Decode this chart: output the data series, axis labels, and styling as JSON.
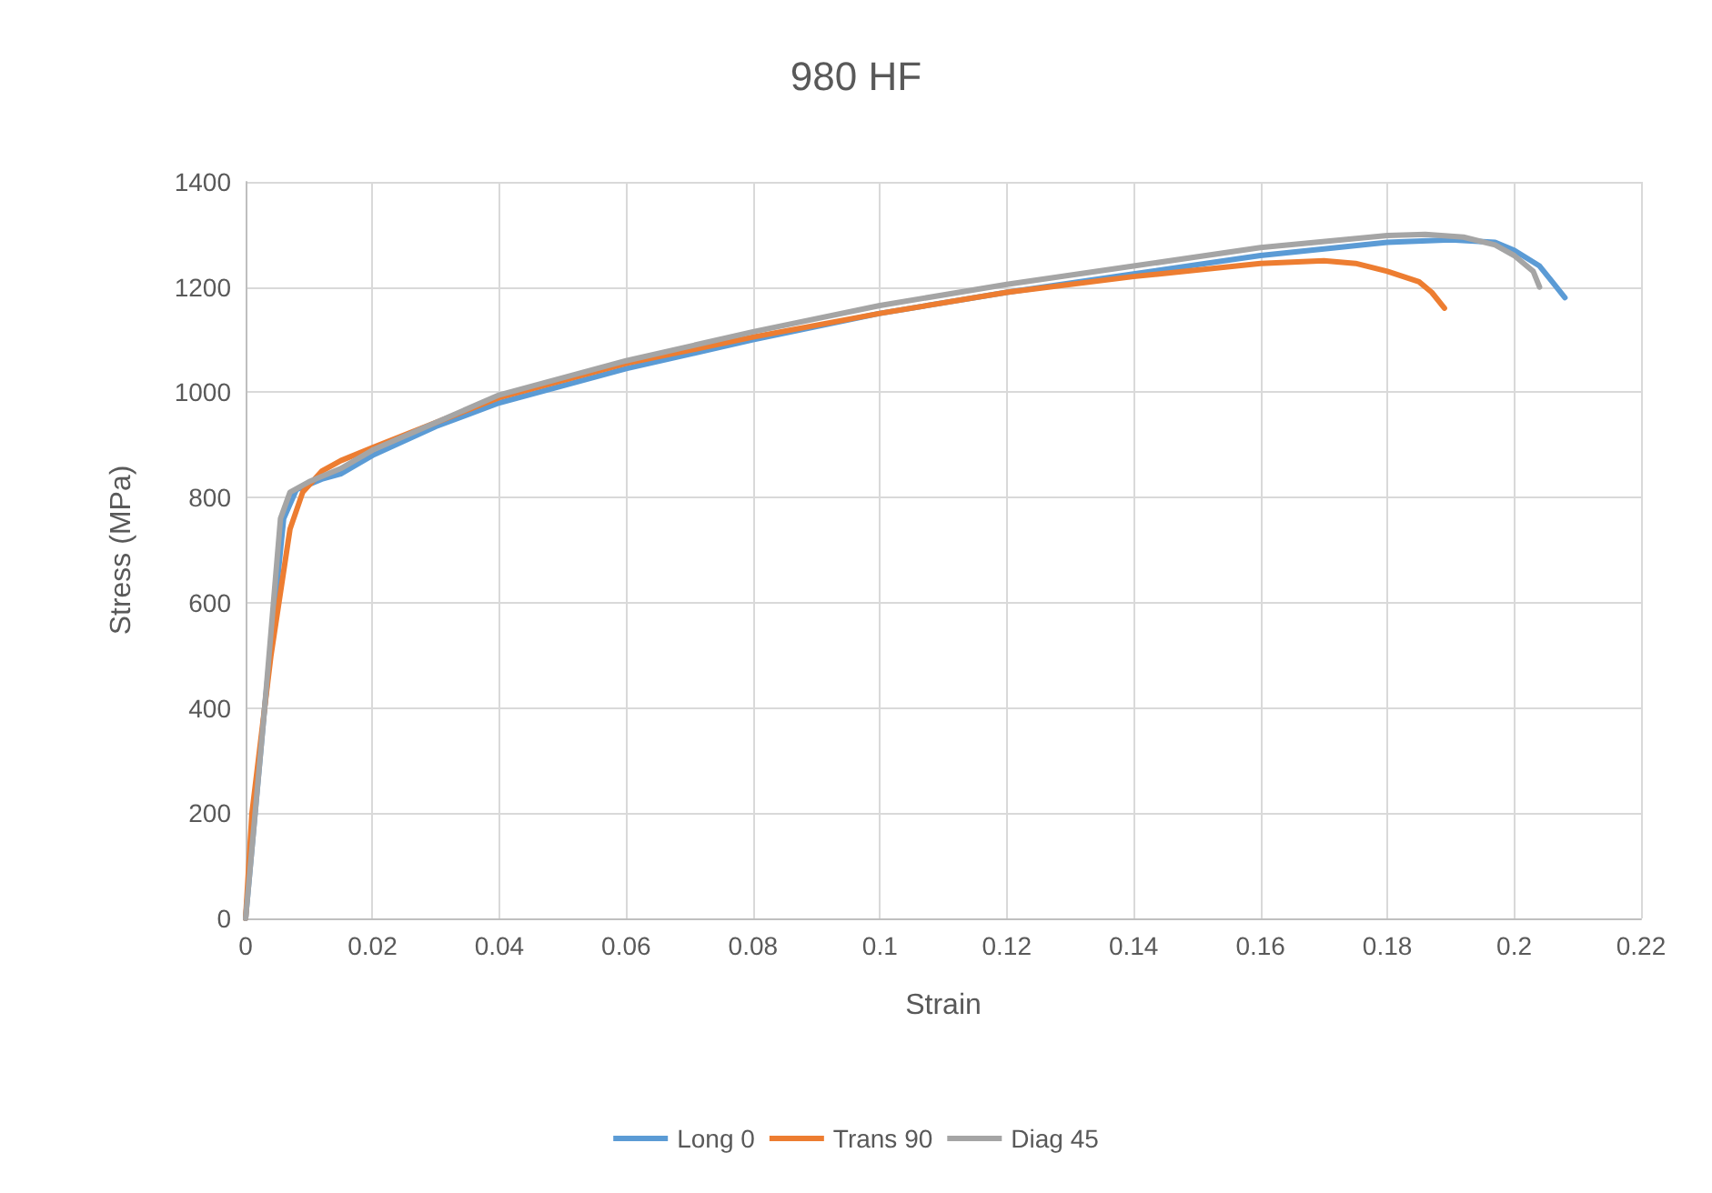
{
  "chart_data": {
    "type": "line",
    "title": "980 HF",
    "xlabel": "Strain",
    "ylabel": "Stress (MPa)",
    "xlim": [
      0,
      0.22
    ],
    "xticks": [
      0,
      0.02,
      0.04,
      0.06,
      0.08,
      0.1,
      0.12,
      0.14,
      0.16,
      0.18,
      0.2,
      0.22
    ],
    "ylim": [
      0,
      1400
    ],
    "yticks": [
      0,
      200,
      400,
      600,
      800,
      1000,
      1200,
      1400
    ],
    "grid": true,
    "legend": "bottom",
    "marker": "none",
    "line_style": "solid",
    "series": [
      {
        "name": "Long 0",
        "color": "#5b9bd5",
        "x": [
          0,
          0.003,
          0.006,
          0.008,
          0.012,
          0.015,
          0.02,
          0.03,
          0.04,
          0.06,
          0.08,
          0.1,
          0.12,
          0.14,
          0.16,
          0.18,
          0.19,
          0.197,
          0.2,
          0.204,
          0.206,
          0.208
        ],
        "values": [
          0,
          400,
          760,
          815,
          835,
          845,
          880,
          935,
          980,
          1045,
          1100,
          1150,
          1190,
          1225,
          1260,
          1285,
          1290,
          1285,
          1270,
          1240,
          1210,
          1180
        ]
      },
      {
        "name": "Trans 90",
        "color": "#ed7d31",
        "x": [
          0,
          0.001,
          0.004,
          0.007,
          0.009,
          0.012,
          0.015,
          0.02,
          0.04,
          0.06,
          0.08,
          0.1,
          0.12,
          0.14,
          0.16,
          0.17,
          0.175,
          0.18,
          0.185,
          0.187,
          0.189
        ],
        "values": [
          0,
          200,
          500,
          740,
          810,
          850,
          870,
          895,
          990,
          1055,
          1105,
          1150,
          1190,
          1220,
          1245,
          1250,
          1245,
          1230,
          1210,
          1190,
          1160
        ]
      },
      {
        "name": "Diag 45",
        "color": "#a5a5a5",
        "x": [
          0,
          0.003,
          0.0055,
          0.007,
          0.01,
          0.015,
          0.02,
          0.04,
          0.06,
          0.08,
          0.1,
          0.12,
          0.14,
          0.16,
          0.18,
          0.186,
          0.192,
          0.197,
          0.2,
          0.203,
          0.204
        ],
        "values": [
          0,
          400,
          760,
          810,
          830,
          855,
          890,
          995,
          1060,
          1115,
          1165,
          1205,
          1240,
          1275,
          1298,
          1300,
          1295,
          1280,
          1260,
          1230,
          1200
        ]
      }
    ]
  }
}
